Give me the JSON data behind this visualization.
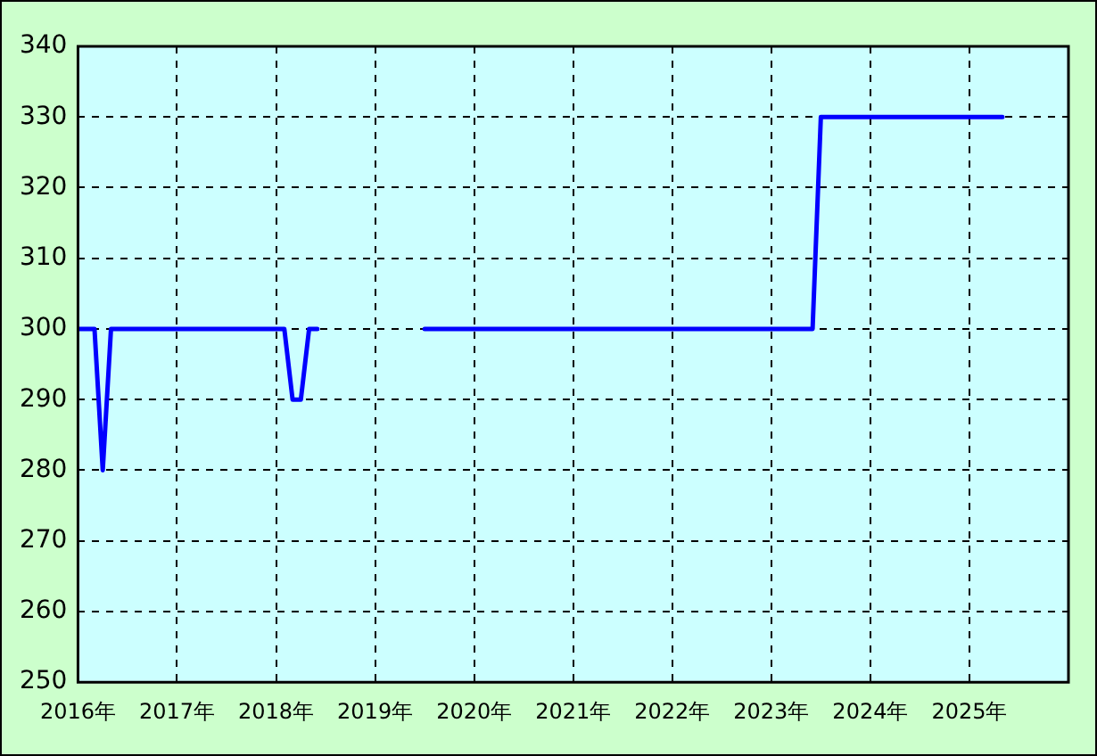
{
  "chart_data": {
    "type": "line",
    "x": [
      "2016-01",
      "2016-03",
      "2016-04",
      "2016-05",
      "2018-02",
      "2018-03",
      "2018-04",
      "2018-05",
      "2018-06",
      "2018-07",
      "2019-07",
      "2023-06",
      "2023-07",
      "2025-05"
    ],
    "series": [
      {
        "color": "#0000ff",
        "values": [
          300,
          300,
          280,
          300,
          300,
          290,
          290,
          300,
          300,
          null,
          300,
          300,
          330,
          330
        ]
      }
    ],
    "xlim": [
      "2016",
      "2026"
    ],
    "xticks": [
      {
        "value": "2016",
        "label": "2016年"
      },
      {
        "value": "2017",
        "label": "2017年"
      },
      {
        "value": "2018",
        "label": "2018年"
      },
      {
        "value": "2019",
        "label": "2019年"
      },
      {
        "value": "2020",
        "label": "2020年"
      },
      {
        "value": "2021",
        "label": "2021年"
      },
      {
        "value": "2022",
        "label": "2022年"
      },
      {
        "value": "2023",
        "label": "2023年"
      },
      {
        "value": "2024",
        "label": "2024年"
      },
      {
        "value": "2025",
        "label": "2025年"
      }
    ],
    "ylim": [
      250,
      340
    ],
    "yticks": [
      250,
      260,
      270,
      280,
      290,
      300,
      310,
      320,
      330,
      340
    ],
    "grid": true,
    "legend": false,
    "marker": "none",
    "line_style": "solid"
  }
}
